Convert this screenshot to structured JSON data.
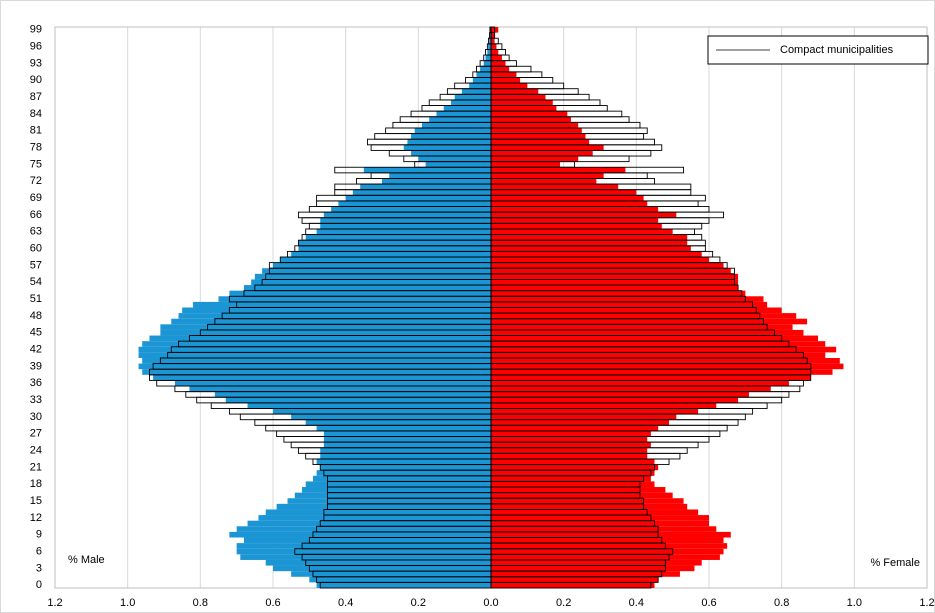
{
  "chart_data": {
    "type": "pyramid",
    "annotations": [
      "% Male",
      "% Female"
    ],
    "categories": [
      "0",
      null,
      null,
      "3",
      null,
      null,
      "6",
      null,
      null,
      "9",
      null,
      null,
      "12",
      null,
      null,
      "15",
      null,
      null,
      "18",
      null,
      null,
      "21",
      null,
      null,
      "24",
      null,
      null,
      "27",
      null,
      null,
      "30",
      null,
      null,
      "33",
      null,
      null,
      "36",
      null,
      null,
      "39",
      null,
      null,
      "42",
      null,
      null,
      "45",
      null,
      null,
      "48",
      null,
      null,
      "51",
      null,
      null,
      "54",
      null,
      null,
      "57",
      null,
      null,
      "60",
      null,
      null,
      "63",
      null,
      null,
      "66",
      null,
      null,
      "69",
      null,
      null,
      "72",
      null,
      null,
      "75",
      null,
      null,
      "78",
      null,
      null,
      "81",
      null,
      null,
      "84",
      null,
      null,
      "87",
      null,
      null,
      "90",
      null,
      null,
      "93",
      null,
      null,
      "96",
      null,
      null,
      "99"
    ],
    "series": [
      {
        "color": "#1b95d4",
        "filled": true,
        "values": [
          -0.48,
          -0.5,
          -0.55,
          -0.6,
          -0.62,
          -0.69,
          -0.7,
          -0.7,
          -0.68,
          -0.72,
          -0.7,
          -0.67,
          -0.64,
          -0.62,
          -0.59,
          -0.56,
          -0.54,
          -0.52,
          -0.51,
          -0.49,
          -0.48,
          -0.47,
          -0.48,
          -0.47,
          -0.47,
          -0.46,
          -0.46,
          -0.46,
          -0.48,
          -0.51,
          -0.55,
          -0.6,
          -0.67,
          -0.73,
          -0.76,
          -0.83,
          -0.87,
          -0.93,
          -0.96,
          -0.97,
          -0.96,
          -0.97,
          -0.97,
          -0.96,
          -0.94,
          -0.91,
          -0.91,
          -0.88,
          -0.86,
          -0.85,
          -0.82,
          -0.75,
          -0.72,
          -0.68,
          -0.66,
          -0.65,
          -0.63,
          -0.6,
          -0.58,
          -0.55,
          -0.53,
          -0.53,
          -0.51,
          -0.48,
          -0.47,
          -0.47,
          -0.46,
          -0.44,
          -0.42,
          -0.4,
          -0.38,
          -0.36,
          -0.3,
          -0.28,
          -0.35,
          -0.18,
          -0.2,
          -0.22,
          -0.24,
          -0.23,
          -0.22,
          -0.21,
          -0.19,
          -0.17,
          -0.15,
          -0.13,
          -0.11,
          -0.1,
          -0.08,
          -0.06,
          -0.05,
          -0.04,
          -0.03,
          -0.02,
          -0.015,
          -0.01,
          -0.008,
          -0.005,
          -0.003,
          -0.002
        ]
      },
      {
        "color": "#ff0000",
        "filled": true,
        "values": [
          0.45,
          0.46,
          0.52,
          0.56,
          0.58,
          0.63,
          0.64,
          0.65,
          0.64,
          0.66,
          0.62,
          0.6,
          0.6,
          0.57,
          0.54,
          0.53,
          0.5,
          0.48,
          0.45,
          0.44,
          0.45,
          0.46,
          0.45,
          0.43,
          0.43,
          0.44,
          0.43,
          0.44,
          0.46,
          0.49,
          0.51,
          0.57,
          0.62,
          0.68,
          0.71,
          0.77,
          0.82,
          0.88,
          0.94,
          0.97,
          0.96,
          0.92,
          0.95,
          0.92,
          0.9,
          0.86,
          0.83,
          0.87,
          0.84,
          0.8,
          0.76,
          0.75,
          0.7,
          0.68,
          0.68,
          0.68,
          0.66,
          0.64,
          0.6,
          0.58,
          0.55,
          0.54,
          0.54,
          0.5,
          0.47,
          0.46,
          0.51,
          0.46,
          0.43,
          0.42,
          0.4,
          0.35,
          0.29,
          0.31,
          0.37,
          0.19,
          0.24,
          0.28,
          0.31,
          0.27,
          0.26,
          0.25,
          0.24,
          0.22,
          0.21,
          0.18,
          0.17,
          0.15,
          0.13,
          0.1,
          0.08,
          0.07,
          0.05,
          0.04,
          0.03,
          0.02,
          0.015,
          0.01,
          0.01,
          0.02
        ]
      },
      {
        "name": "Compact municipalities",
        "color": "#000000",
        "filled": false,
        "values": [
          -0.47,
          -0.48,
          -0.49,
          -0.5,
          -0.51,
          -0.52,
          -0.54,
          -0.52,
          -0.5,
          -0.49,
          -0.48,
          -0.47,
          -0.46,
          -0.46,
          -0.45,
          -0.45,
          -0.45,
          -0.45,
          -0.45,
          -0.45,
          -0.46,
          -0.47,
          -0.49,
          -0.51,
          -0.53,
          -0.55,
          -0.57,
          -0.59,
          -0.62,
          -0.65,
          -0.69,
          -0.72,
          -0.77,
          -0.81,
          -0.84,
          -0.87,
          -0.92,
          -0.94,
          -0.94,
          -0.93,
          -0.91,
          -0.89,
          -0.88,
          -0.86,
          -0.83,
          -0.8,
          -0.78,
          -0.76,
          -0.74,
          -0.72,
          -0.7,
          -0.72,
          -0.68,
          -0.65,
          -0.63,
          -0.62,
          -0.61,
          -0.61,
          -0.58,
          -0.56,
          -0.54,
          -0.53,
          -0.52,
          -0.51,
          -0.5,
          -0.52,
          -0.53,
          -0.5,
          -0.48,
          -0.48,
          -0.43,
          -0.43,
          -0.37,
          -0.33,
          -0.43,
          -0.21,
          -0.24,
          -0.28,
          -0.33,
          -0.34,
          -0.32,
          -0.29,
          -0.27,
          -0.25,
          -0.22,
          -0.19,
          -0.17,
          -0.14,
          -0.12,
          -0.1,
          -0.07,
          -0.05,
          -0.04,
          -0.03,
          -0.02,
          -0.015,
          -0.01,
          -0.007,
          -0.004,
          -0.003
        ]
      },
      {
        "color": "#000000",
        "filled": false,
        "values": [
          0.44,
          0.46,
          0.47,
          0.48,
          0.48,
          0.49,
          0.5,
          0.48,
          0.47,
          0.46,
          0.46,
          0.45,
          0.44,
          0.43,
          0.42,
          0.42,
          0.41,
          0.41,
          0.41,
          0.42,
          0.44,
          0.45,
          0.49,
          0.52,
          0.54,
          0.57,
          0.6,
          0.63,
          0.65,
          0.68,
          0.7,
          0.72,
          0.76,
          0.8,
          0.82,
          0.85,
          0.86,
          0.88,
          0.88,
          0.88,
          0.87,
          0.86,
          0.84,
          0.82,
          0.8,
          0.78,
          0.76,
          0.75,
          0.74,
          0.73,
          0.72,
          0.7,
          0.69,
          0.68,
          0.67,
          0.67,
          0.67,
          0.65,
          0.63,
          0.61,
          0.59,
          0.59,
          0.58,
          0.56,
          0.58,
          0.6,
          0.64,
          0.6,
          0.57,
          0.59,
          0.55,
          0.55,
          0.45,
          0.43,
          0.53,
          0.23,
          0.38,
          0.44,
          0.47,
          0.45,
          0.42,
          0.43,
          0.41,
          0.38,
          0.36,
          0.32,
          0.3,
          0.27,
          0.24,
          0.2,
          0.17,
          0.14,
          0.11,
          0.07,
          0.05,
          0.04,
          0.03,
          0.02,
          0.01,
          0.01
        ]
      }
    ],
    "xlim": [
      -1.2,
      1.2
    ],
    "xticks": [
      {
        "value": -1.2,
        "label": "1.2"
      },
      {
        "value": -1,
        "label": "1.0"
      },
      {
        "value": -0.8,
        "label": "0.8"
      },
      {
        "value": -0.6,
        "label": "0.6"
      },
      {
        "value": -0.4,
        "label": "0.4"
      },
      {
        "value": -0.2,
        "label": "0.2"
      },
      {
        "value": 0,
        "label": "0.0"
      },
      0.2,
      0.4,
      0.6,
      0.8,
      {
        "value": 1,
        "label": "1.0"
      },
      1.2
    ],
    "grid": true,
    "legend": "upper right"
  }
}
